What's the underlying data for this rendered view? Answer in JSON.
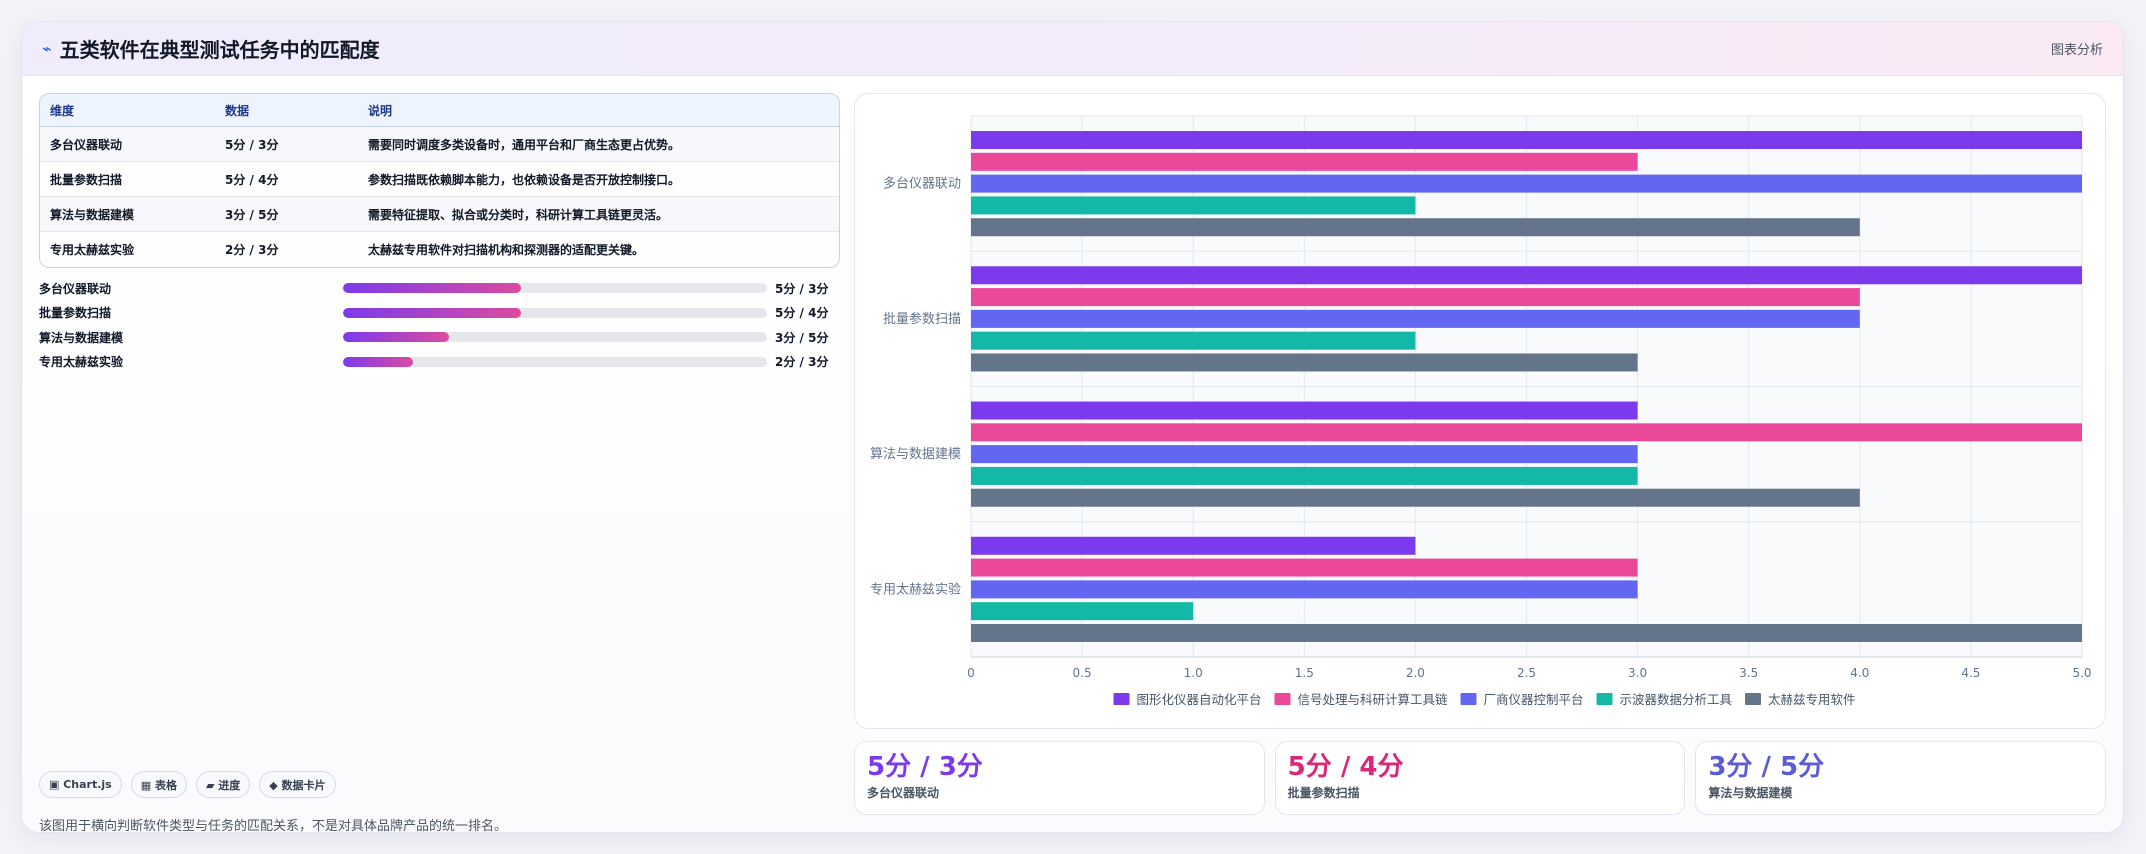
{
  "header": {
    "icon": "chart-icon",
    "title": "五类软件在典型测试任务中的匹配度",
    "right_label": "图表分析"
  },
  "table": {
    "headers": [
      "维度",
      "数据",
      "说明"
    ],
    "rows": [
      [
        "多台仪器联动",
        "5分 / 3分",
        "需要同时调度多类设备时，通用平台和厂商生态更占优势。"
      ],
      [
        "批量参数扫描",
        "5分 / 4分",
        "参数扫描既依赖脚本能力，也依赖设备是否开放控制接口。"
      ],
      [
        "算法与数据建模",
        "3分 / 5分",
        "需要特征提取、拟合或分类时，科研计算工具链更灵活。"
      ],
      [
        "专用太赫兹实验",
        "2分 / 3分",
        "太赫兹专用软件对扫描机构和探测器的适配更关键。"
      ]
    ]
  },
  "progress": [
    {
      "label": "多台仪器联动",
      "value_text": "5分 / 3分",
      "fill": 0.42
    },
    {
      "label": "批量参数扫描",
      "value_text": "5分 / 4分",
      "fill": 0.42
    },
    {
      "label": "算法与数据建模",
      "value_text": "3分 / 5分",
      "fill": 0.25
    },
    {
      "label": "专用太赫兹实验",
      "value_text": "2分 / 3分",
      "fill": 0.165
    }
  ],
  "tags": [
    {
      "icon": "chartjs-icon",
      "label": "▣ Chart.js"
    },
    {
      "icon": "table-icon",
      "label": "▦ 表格"
    },
    {
      "icon": "progress-icon",
      "label": "▰ 进度"
    },
    {
      "icon": "card-icon",
      "label": "◆ 数据卡片"
    }
  ],
  "footnote": "该图用于横向判断软件类型与任务的匹配关系，不是对具体品牌产品的统一排名。",
  "stats": [
    {
      "value": "5分 / 3分",
      "label": "多台仪器联动",
      "color": "#7c3aed"
    },
    {
      "value": "5分 / 4分",
      "label": "批量参数扫描",
      "color": "#db2777"
    },
    {
      "value": "3分 / 5分",
      "label": "算法与数据建模",
      "color": "#5b5bd6"
    }
  ],
  "chart_data": {
    "type": "bar",
    "orientation": "horizontal",
    "categories": [
      "多台仪器联动",
      "批量参数扫描",
      "算法与数据建模",
      "专用太赫兹实验"
    ],
    "series": [
      {
        "name": "图形化仪器自动化平台",
        "color": "#7c3aed",
        "values": [
          5,
          5,
          3,
          2
        ]
      },
      {
        "name": "信号处理与科研计算工具链",
        "color": "#ec4899",
        "values": [
          3,
          4,
          5,
          3
        ]
      },
      {
        "name": "厂商仪器控制平台",
        "color": "#6366f1",
        "values": [
          5,
          4,
          3,
          3
        ]
      },
      {
        "name": "示波器数据分析工具",
        "color": "#14b8a6",
        "values": [
          2,
          2,
          3,
          1
        ]
      },
      {
        "name": "太赫兹专用软件",
        "color": "#64748b",
        "values": [
          4,
          3,
          4,
          5
        ]
      }
    ],
    "xlim": [
      0,
      5
    ],
    "xticks": [
      "0",
      "0.5",
      "1.0",
      "1.5",
      "2.0",
      "2.5",
      "3.0",
      "3.5",
      "4.0",
      "4.5",
      "5.0"
    ],
    "grid": true,
    "legend_position": "bottom"
  }
}
